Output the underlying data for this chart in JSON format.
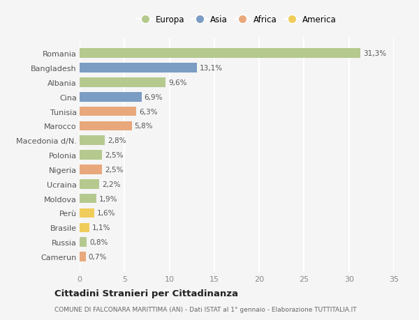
{
  "categories": [
    "Romania",
    "Bangladesh",
    "Albania",
    "Cina",
    "Tunisia",
    "Marocco",
    "Macedonia d/N.",
    "Polonia",
    "Nigeria",
    "Ucraina",
    "Moldova",
    "Perù",
    "Brasile",
    "Russia",
    "Camerun"
  ],
  "values": [
    31.3,
    13.1,
    9.6,
    6.9,
    6.3,
    5.8,
    2.8,
    2.5,
    2.5,
    2.2,
    1.9,
    1.6,
    1.1,
    0.8,
    0.7
  ],
  "labels": [
    "31,3%",
    "13,1%",
    "9,6%",
    "6,9%",
    "6,3%",
    "5,8%",
    "2,8%",
    "2,5%",
    "2,5%",
    "2,2%",
    "1,9%",
    "1,6%",
    "1,1%",
    "0,8%",
    "0,7%"
  ],
  "continent": [
    "Europa",
    "Asia",
    "Europa",
    "Asia",
    "Africa",
    "Africa",
    "Europa",
    "Europa",
    "Africa",
    "Europa",
    "Europa",
    "America",
    "America",
    "Europa",
    "Africa"
  ],
  "colors": {
    "Europa": "#b5c98e",
    "Asia": "#7b9dc4",
    "Africa": "#e8a87c",
    "America": "#f0cc5a"
  },
  "xlim": [
    0,
    35
  ],
  "xticks": [
    0,
    5,
    10,
    15,
    20,
    25,
    30,
    35
  ],
  "title1": "Cittadini Stranieri per Cittadinanza",
  "title2": "COMUNE DI FALCONARA MARITTIMA (AN) - Dati ISTAT al 1° gennaio - Elaborazione TUTTITALIA.IT",
  "background_color": "#f5f5f5",
  "grid_color": "#ffffff",
  "legend_order": [
    "Europa",
    "Asia",
    "Africa",
    "America"
  ]
}
